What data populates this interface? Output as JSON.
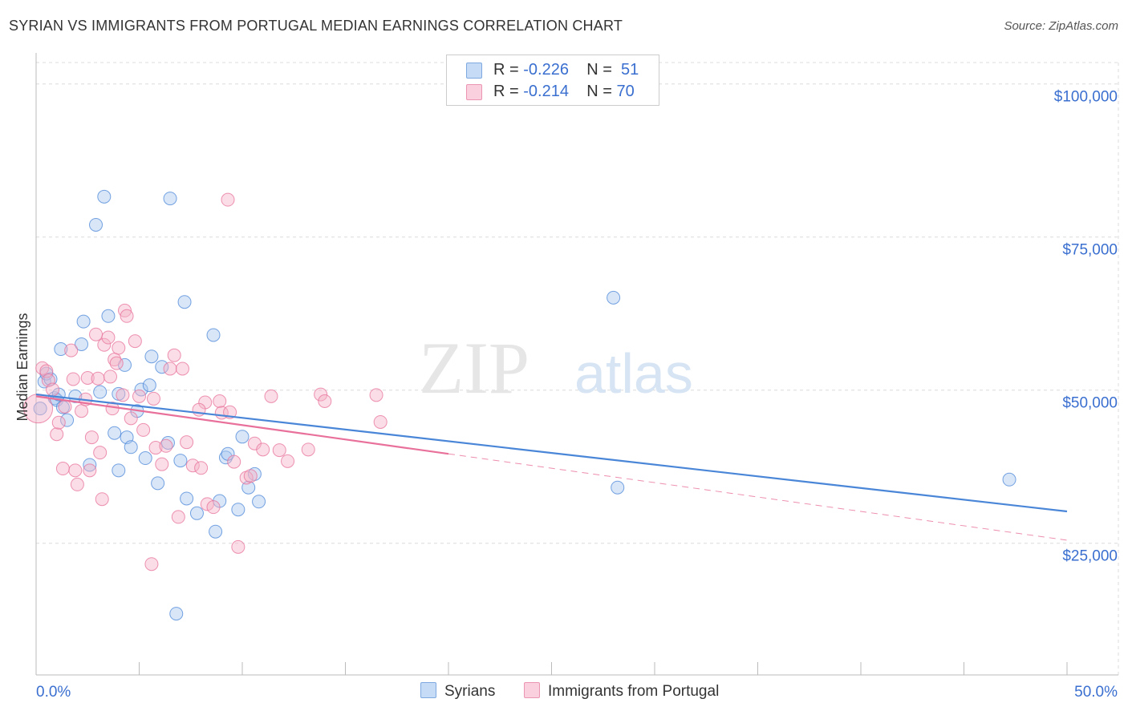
{
  "title": "SYRIAN VS IMMIGRANTS FROM PORTUGAL MEDIAN EARNINGS CORRELATION CHART",
  "source": "Source: ZipAtlas.com",
  "watermark": {
    "zip": "ZIP",
    "atlas": "atlas"
  },
  "legend": {
    "series1": {
      "r_label": "R =",
      "r_value": "-0.226",
      "n_label": "N =",
      "n_value": "51",
      "color": "#a8c8f0"
    },
    "series2": {
      "r_label": "R =",
      "r_value": "-0.214",
      "n_label": "N =",
      "n_value": "70",
      "color": "#f5b3c8"
    }
  },
  "bottom_legend": {
    "series1": "Syrians",
    "series2": "Immigrants from Portugal"
  },
  "chart_data": {
    "type": "scatter",
    "title": "SYRIAN VS IMMIGRANTS FROM PORTUGAL MEDIAN EARNINGS CORRELATION CHART",
    "xlabel": "",
    "ylabel": "Median Earnings",
    "xlim": [
      0,
      50
    ],
    "ylim": [
      3500,
      103500
    ],
    "x_tick_labels": [
      "0.0%",
      "50.0%"
    ],
    "y_ticks": [
      25000,
      50000,
      75000,
      100000
    ],
    "y_tick_labels": [
      "$25,000",
      "$50,000",
      "$75,000",
      "$100,000"
    ],
    "series": [
      {
        "name": "Syrians",
        "color": "#4a86d8",
        "fill": "#a8c8f0",
        "trend": {
          "x": [
            0,
            50
          ],
          "y": [
            49300,
            30200
          ],
          "style": "solid"
        },
        "points": [
          [
            0.4,
            51400
          ],
          [
            0.5,
            52700
          ],
          [
            0.7,
            51800
          ],
          [
            0.9,
            48700
          ],
          [
            1.0,
            48400
          ],
          [
            1.3,
            47200
          ],
          [
            1.2,
            56700
          ],
          [
            1.5,
            45100
          ],
          [
            1.9,
            49000
          ],
          [
            2.2,
            57500
          ],
          [
            2.3,
            61200
          ],
          [
            2.6,
            37800
          ],
          [
            2.9,
            77000
          ],
          [
            3.1,
            49700
          ],
          [
            3.3,
            81600
          ],
          [
            3.5,
            62100
          ],
          [
            3.8,
            43000
          ],
          [
            4.0,
            36900
          ],
          [
            4.0,
            49400
          ],
          [
            4.3,
            54100
          ],
          [
            4.4,
            42300
          ],
          [
            4.6,
            40700
          ],
          [
            4.9,
            46600
          ],
          [
            5.1,
            50100
          ],
          [
            5.3,
            38900
          ],
          [
            5.5,
            50800
          ],
          [
            5.6,
            55500
          ],
          [
            5.9,
            34800
          ],
          [
            6.1,
            53800
          ],
          [
            6.4,
            41400
          ],
          [
            6.5,
            81300
          ],
          [
            6.8,
            13500
          ],
          [
            7.0,
            38500
          ],
          [
            7.2,
            64400
          ],
          [
            7.3,
            32300
          ],
          [
            7.8,
            29900
          ],
          [
            8.6,
            59000
          ],
          [
            8.7,
            26900
          ],
          [
            8.9,
            31900
          ],
          [
            9.2,
            39000
          ],
          [
            9.3,
            39600
          ],
          [
            9.8,
            30500
          ],
          [
            10.0,
            42400
          ],
          [
            10.3,
            34100
          ],
          [
            10.6,
            36300
          ],
          [
            10.8,
            31800
          ],
          [
            28.0,
            65100
          ],
          [
            28.2,
            34100
          ],
          [
            47.2,
            35400
          ],
          [
            0.2,
            47000
          ],
          [
            1.1,
            49300
          ]
        ]
      },
      {
        "name": "Immigrants from Portugal",
        "color": "#e8709a",
        "fill": "#f5b3c8",
        "trend": {
          "x": [
            0,
            20
          ],
          "y": [
            49000,
            39600
          ],
          "style": "solid",
          "extended_x": [
            20,
            50
          ],
          "extended_y": [
            39600,
            25500
          ],
          "extended_style": "dashed"
        },
        "points": [
          [
            0.1,
            47000
          ],
          [
            0.3,
            53600
          ],
          [
            0.5,
            53100
          ],
          [
            0.6,
            51600
          ],
          [
            0.8,
            50100
          ],
          [
            1.0,
            42800
          ],
          [
            1.1,
            44700
          ],
          [
            1.3,
            37200
          ],
          [
            1.4,
            47300
          ],
          [
            1.7,
            56500
          ],
          [
            1.8,
            51800
          ],
          [
            1.9,
            36900
          ],
          [
            2.0,
            34600
          ],
          [
            2.2,
            46600
          ],
          [
            2.4,
            48500
          ],
          [
            2.5,
            52000
          ],
          [
            2.7,
            42300
          ],
          [
            2.9,
            59100
          ],
          [
            3.0,
            51900
          ],
          [
            3.1,
            39800
          ],
          [
            3.2,
            32200
          ],
          [
            3.3,
            57400
          ],
          [
            3.5,
            58600
          ],
          [
            3.6,
            52200
          ],
          [
            3.7,
            47000
          ],
          [
            3.8,
            55000
          ],
          [
            3.9,
            54400
          ],
          [
            4.0,
            56900
          ],
          [
            4.2,
            49200
          ],
          [
            4.3,
            63000
          ],
          [
            4.4,
            62100
          ],
          [
            4.6,
            45400
          ],
          [
            4.8,
            58000
          ],
          [
            5.0,
            49000
          ],
          [
            5.2,
            43500
          ],
          [
            5.6,
            21600
          ],
          [
            5.8,
            40600
          ],
          [
            6.1,
            37900
          ],
          [
            6.3,
            40900
          ],
          [
            6.5,
            53500
          ],
          [
            6.7,
            55700
          ],
          [
            6.9,
            29300
          ],
          [
            7.1,
            53500
          ],
          [
            7.3,
            41500
          ],
          [
            7.6,
            37700
          ],
          [
            8.0,
            37300
          ],
          [
            8.2,
            48000
          ],
          [
            8.3,
            31400
          ],
          [
            8.6,
            30900
          ],
          [
            8.9,
            48200
          ],
          [
            9.0,
            46300
          ],
          [
            9.4,
            46400
          ],
          [
            9.6,
            38300
          ],
          [
            9.8,
            24400
          ],
          [
            10.2,
            35700
          ],
          [
            10.6,
            41300
          ],
          [
            11.0,
            40300
          ],
          [
            11.4,
            49000
          ],
          [
            11.8,
            40200
          ],
          [
            12.2,
            38400
          ],
          [
            13.2,
            40300
          ],
          [
            13.8,
            49300
          ],
          [
            14.0,
            48200
          ],
          [
            16.5,
            49200
          ],
          [
            16.7,
            44800
          ],
          [
            9.3,
            81100
          ],
          [
            2.6,
            36900
          ],
          [
            5.7,
            48600
          ],
          [
            7.9,
            46800
          ],
          [
            10.4,
            36000
          ]
        ]
      }
    ]
  }
}
